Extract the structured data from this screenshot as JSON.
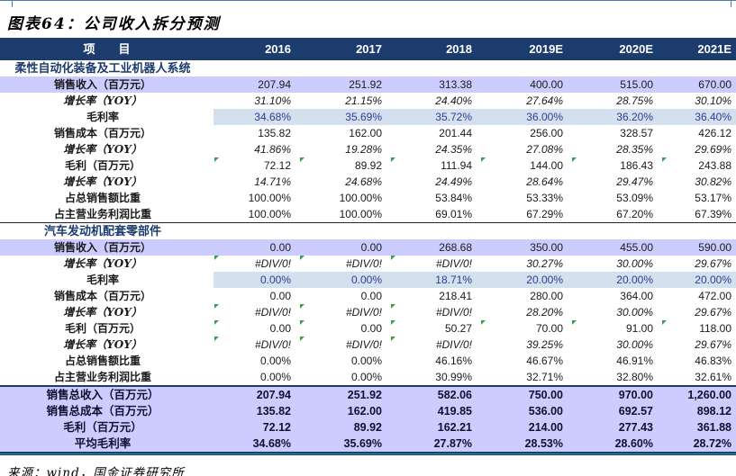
{
  "title": "图表64：公司收入拆分预测",
  "source": "来源：wind，国金证券研究所",
  "colors": {
    "header_bg": "#1d3c6e",
    "header_text": "#ffffff",
    "band_lavender": "#ccccff",
    "margin_cell_bg": "#d5e0ef",
    "margin_cell_text": "#2b3d92",
    "section_text": "#1d3c6e",
    "error_flag_green": "#33a04d",
    "bottom_rule_teal": "#2e93a8",
    "top_rule_blue": "#4d7bb5"
  },
  "table": {
    "columns": [
      "项　　目",
      "2016",
      "2017",
      "2018",
      "2019E",
      "2020E",
      "2021E"
    ],
    "rows": [
      {
        "type": "section",
        "label": "柔性自动化装备及工业机器人系统"
      },
      {
        "type": "data",
        "variant": "revenue",
        "label": "销售收入（百万元）",
        "values": [
          "207.94",
          "251.92",
          "313.38",
          "400.00",
          "515.00",
          "670.00"
        ]
      },
      {
        "type": "data",
        "variant": "growth",
        "label": "增长率（YOY）",
        "values": [
          "31.10%",
          "21.15%",
          "24.40%",
          "27.64%",
          "28.75%",
          "30.10%"
        ]
      },
      {
        "type": "data",
        "variant": "margin",
        "label": "毛利率",
        "values": [
          "34.68%",
          "35.69%",
          "35.72%",
          "36.00%",
          "36.20%",
          "36.40%"
        ]
      },
      {
        "type": "data",
        "variant": "plain",
        "label": "销售成本（百万元）",
        "values": [
          "135.82",
          "162.00",
          "201.44",
          "256.00",
          "328.57",
          "426.12"
        ]
      },
      {
        "type": "data",
        "variant": "growth",
        "label": "增长率（YOY）",
        "values": [
          "41.86%",
          "19.28%",
          "24.35%",
          "27.08%",
          "28.35%",
          "29.69%"
        ]
      },
      {
        "type": "data",
        "variant": "plain",
        "label": "毛利（百万元）",
        "values": [
          "72.12",
          "89.92",
          "111.94",
          "144.00",
          "186.43",
          "243.88"
        ],
        "flags": [
          1,
          1,
          1,
          1,
          1,
          1
        ]
      },
      {
        "type": "data",
        "variant": "growth",
        "label": "增长率（YOY）",
        "values": [
          "14.71%",
          "24.68%",
          "24.49%",
          "28.64%",
          "29.47%",
          "30.82%"
        ]
      },
      {
        "type": "data",
        "variant": "plain",
        "label": "占总销售额比重",
        "values": [
          "100.00%",
          "100.00%",
          "53.84%",
          "53.33%",
          "53.09%",
          "53.17%"
        ]
      },
      {
        "type": "data",
        "variant": "plain",
        "label": "占主营业务利润比重",
        "values": [
          "100.00%",
          "100.00%",
          "69.01%",
          "67.29%",
          "67.20%",
          "67.39%"
        ],
        "rule": "thin"
      },
      {
        "type": "section",
        "label": "汽车发动机配套零部件"
      },
      {
        "type": "data",
        "variant": "revenue",
        "label": "销售收入（百万元）",
        "values": [
          "0.00",
          "0.00",
          "268.68",
          "350.00",
          "455.00",
          "590.00"
        ]
      },
      {
        "type": "data",
        "variant": "growth",
        "label": "增长率（YOY）",
        "values": [
          "#DIV/0!",
          "#DIV/0!",
          "#DIV/0!",
          "30.27%",
          "30.00%",
          "29.67%"
        ],
        "flags": [
          1,
          1,
          1,
          0,
          0,
          0
        ]
      },
      {
        "type": "data",
        "variant": "margin",
        "label": "毛利率",
        "values": [
          "0.00%",
          "0.00%",
          "18.71%",
          "20.00%",
          "20.00%",
          "20.00%"
        ]
      },
      {
        "type": "data",
        "variant": "plain",
        "label": "销售成本（百万元）",
        "values": [
          "0.00",
          "0.00",
          "218.41",
          "280.00",
          "364.00",
          "472.00"
        ]
      },
      {
        "type": "data",
        "variant": "growth",
        "label": "增长率（YOY）",
        "values": [
          "#DIV/0!",
          "#DIV/0!",
          "#DIV/0!",
          "28.20%",
          "30.00%",
          "29.67%"
        ],
        "flags": [
          1,
          1,
          1,
          0,
          0,
          0
        ]
      },
      {
        "type": "data",
        "variant": "plain",
        "label": "毛利（百万元）",
        "values": [
          "0.00",
          "0.00",
          "50.27",
          "70.00",
          "91.00",
          "118.00"
        ],
        "flags": [
          1,
          1,
          1,
          1,
          1,
          1
        ]
      },
      {
        "type": "data",
        "variant": "growth",
        "label": "增长率（YOY）",
        "values": [
          "#DIV/0!",
          "#DIV/0!",
          "#DIV/0!",
          "39.25%",
          "30.00%",
          "29.67%"
        ],
        "flags": [
          1,
          1,
          1,
          0,
          0,
          0
        ]
      },
      {
        "type": "data",
        "variant": "plain",
        "label": "占总销售额比重",
        "values": [
          "0.00%",
          "0.00%",
          "46.16%",
          "46.67%",
          "46.91%",
          "46.83%"
        ]
      },
      {
        "type": "data",
        "variant": "plain",
        "label": "占主营业务利润比重",
        "values": [
          "0.00%",
          "0.00%",
          "30.99%",
          "32.71%",
          "32.80%",
          "32.61%"
        ],
        "rule": "thick"
      },
      {
        "type": "total",
        "label": "销售总收入（百万元）",
        "values": [
          "207.94",
          "251.92",
          "582.06",
          "750.00",
          "970.00",
          "1,260.00"
        ]
      },
      {
        "type": "total",
        "label": "销售总成本（百万元）",
        "values": [
          "135.82",
          "162.00",
          "419.85",
          "536.00",
          "692.57",
          "898.12"
        ]
      },
      {
        "type": "total",
        "label": "毛利（百万元）",
        "values": [
          "72.12",
          "89.92",
          "162.21",
          "214.00",
          "277.43",
          "361.88"
        ]
      },
      {
        "type": "total",
        "label": "平均毛利率",
        "values": [
          "34.68%",
          "35.69%",
          "27.87%",
          "28.53%",
          "28.60%",
          "28.72%"
        ]
      }
    ]
  }
}
